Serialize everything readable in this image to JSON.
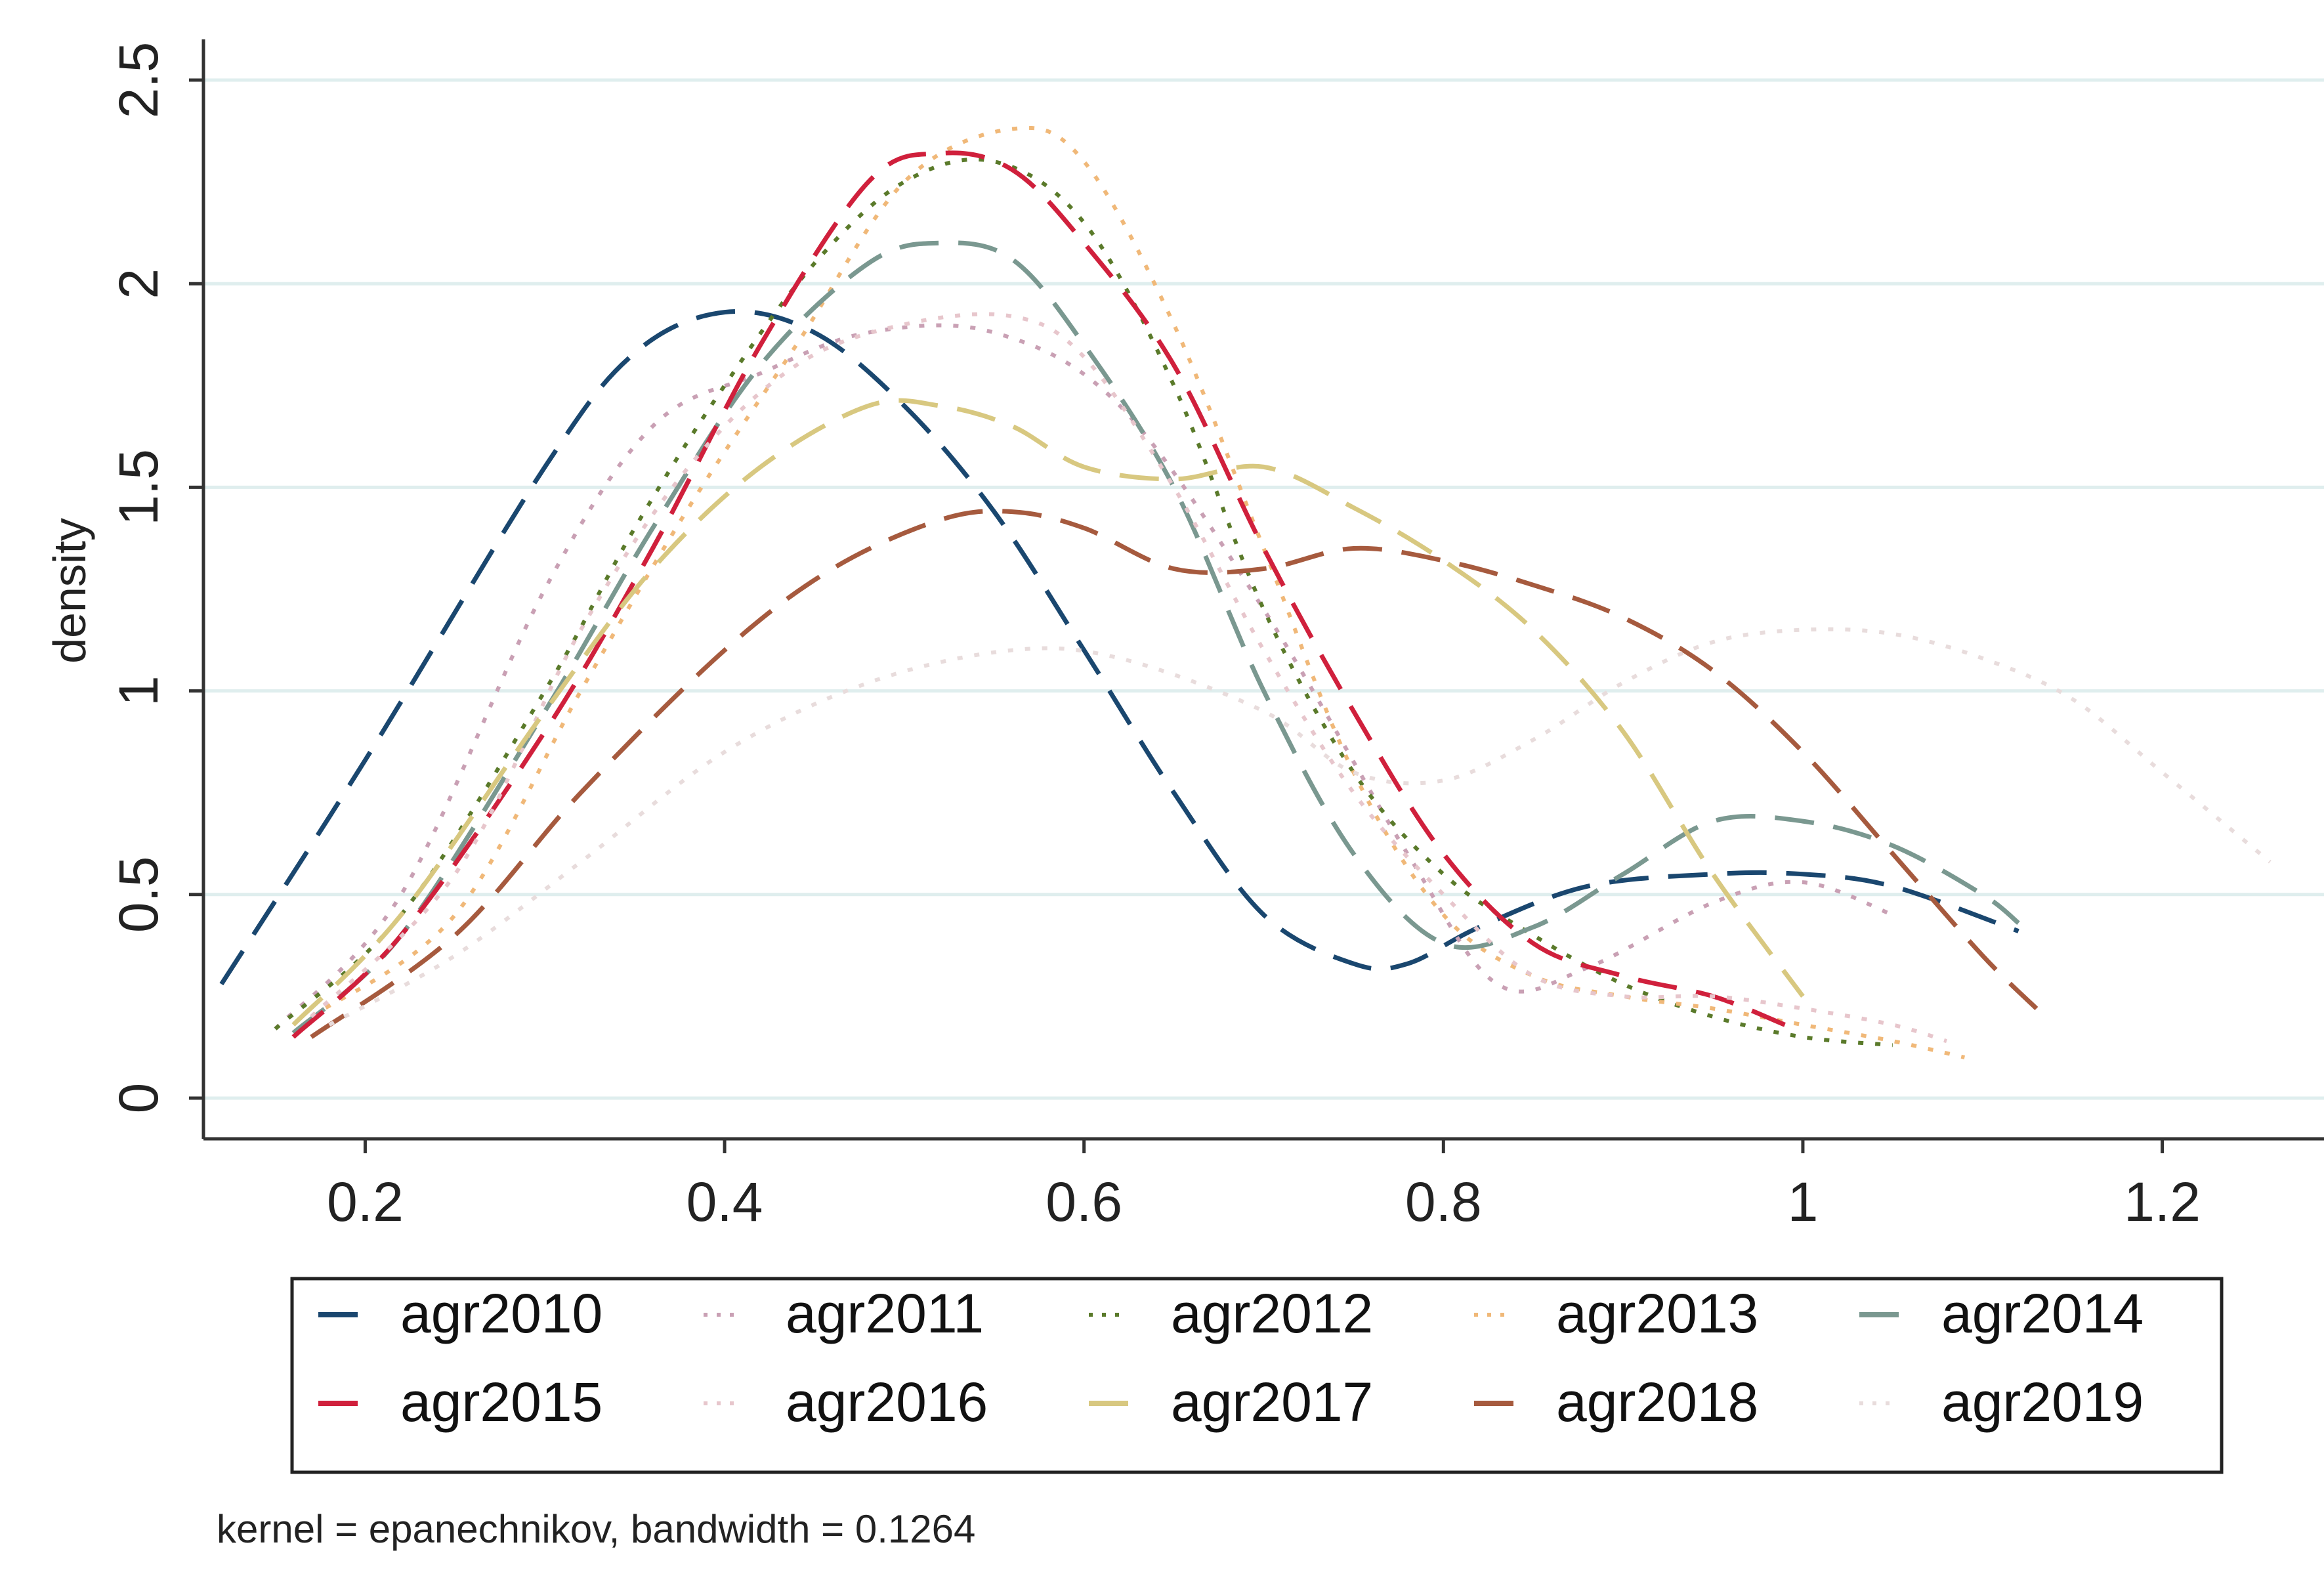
{
  "chart_data": {
    "type": "line",
    "title": "",
    "xlabel": "",
    "ylabel": "density",
    "xlim": [
      0.11,
      1.29
    ],
    "ylim": [
      -0.1,
      2.6
    ],
    "xticks": [
      0.2,
      0.4,
      0.6,
      0.8,
      1,
      1.2
    ],
    "xtick_labels": [
      "0.2",
      "0.4",
      "0.6",
      "0.8",
      "1",
      "1.2"
    ],
    "yticks": [
      0,
      0.5,
      1,
      1.5,
      2,
      2.5
    ],
    "ytick_labels": [
      "0",
      "0.5",
      "1",
      "1.5",
      "2",
      "2.5"
    ],
    "grid": true,
    "note": "kernel = epanechnikov, bandwidth = 0.1264",
    "legend_position": "bottom",
    "series": [
      {
        "name": "agr2010",
        "color": "#1a476f",
        "dash": "long",
        "x": [
          0.12,
          0.2,
          0.3,
          0.35,
          0.4,
          0.45,
          0.5,
          0.55,
          0.6,
          0.65,
          0.7,
          0.75,
          0.78,
          0.82,
          0.88,
          0.95,
          1.0,
          1.05,
          1.12
        ],
        "y": [
          0.28,
          0.83,
          1.55,
          1.83,
          1.93,
          1.88,
          1.7,
          1.44,
          1.1,
          0.75,
          0.45,
          0.33,
          0.33,
          0.42,
          0.52,
          0.55,
          0.55,
          0.52,
          0.41
        ]
      },
      {
        "name": "agr2011",
        "color": "#c9a0b4",
        "dash": "dot",
        "x": [
          0.15,
          0.22,
          0.3,
          0.36,
          0.42,
          0.48,
          0.55,
          0.62,
          0.7,
          0.78,
          0.83,
          0.88,
          0.95,
          1.0,
          1.05
        ],
        "y": [
          0.17,
          0.5,
          1.25,
          1.65,
          1.78,
          1.88,
          1.88,
          1.7,
          1.2,
          0.6,
          0.28,
          0.32,
          0.48,
          0.53,
          0.45
        ]
      },
      {
        "name": "agr2012",
        "color": "#5a7a2a",
        "dash": "dot",
        "x": [
          0.15,
          0.22,
          0.3,
          0.35,
          0.4,
          0.45,
          0.5,
          0.55,
          0.6,
          0.65,
          0.7,
          0.75,
          0.8,
          0.85,
          0.9,
          0.95,
          1.0,
          1.05
        ],
        "y": [
          0.17,
          0.45,
          1.0,
          1.4,
          1.75,
          2.05,
          2.25,
          2.3,
          2.15,
          1.75,
          1.2,
          0.8,
          0.55,
          0.4,
          0.28,
          0.2,
          0.15,
          0.13
        ]
      },
      {
        "name": "agr2013",
        "color": "#f0b878",
        "dash": "dot",
        "x": [
          0.17,
          0.25,
          0.32,
          0.38,
          0.44,
          0.5,
          0.56,
          0.6,
          0.65,
          0.7,
          0.75,
          0.8,
          0.85,
          0.9,
          0.95,
          1.0,
          1.05,
          1.09
        ],
        "y": [
          0.2,
          0.45,
          1.0,
          1.45,
          1.85,
          2.25,
          2.38,
          2.3,
          1.9,
          1.35,
          0.8,
          0.45,
          0.3,
          0.25,
          0.22,
          0.18,
          0.14,
          0.1
        ]
      },
      {
        "name": "agr2014",
        "color": "#7a9890",
        "dash": "long",
        "x": [
          0.16,
          0.22,
          0.3,
          0.36,
          0.42,
          0.48,
          0.52,
          0.56,
          0.6,
          0.65,
          0.7,
          0.75,
          0.8,
          0.85,
          0.9,
          0.95,
          1.0,
          1.05,
          1.1,
          1.12
        ],
        "y": [
          0.16,
          0.4,
          0.95,
          1.4,
          1.8,
          2.05,
          2.1,
          2.06,
          1.85,
          1.5,
          1.0,
          0.6,
          0.38,
          0.42,
          0.55,
          0.68,
          0.68,
          0.62,
          0.5,
          0.43
        ]
      },
      {
        "name": "agr2015",
        "color": "#d0203c",
        "dash": "long",
        "x": [
          0.16,
          0.22,
          0.3,
          0.36,
          0.42,
          0.48,
          0.52,
          0.56,
          0.6,
          0.65,
          0.7,
          0.75,
          0.8,
          0.85,
          0.9,
          0.95,
          0.99
        ],
        "y": [
          0.15,
          0.4,
          0.9,
          1.35,
          1.85,
          2.25,
          2.32,
          2.28,
          2.1,
          1.8,
          1.35,
          0.95,
          0.6,
          0.38,
          0.3,
          0.25,
          0.18
        ]
      },
      {
        "name": "agr2016",
        "color": "#e7c6cc",
        "dash": "dot",
        "x": [
          0.17,
          0.25,
          0.32,
          0.38,
          0.44,
          0.5,
          0.56,
          0.6,
          0.65,
          0.7,
          0.75,
          0.8,
          0.85,
          0.9,
          0.95,
          1.0,
          1.05,
          1.08
        ],
        "y": [
          0.2,
          0.55,
          1.15,
          1.55,
          1.8,
          1.9,
          1.92,
          1.82,
          1.5,
          1.1,
          0.75,
          0.5,
          0.3,
          0.25,
          0.25,
          0.22,
          0.18,
          0.14
        ]
      },
      {
        "name": "agr2017",
        "color": "#d8c880",
        "dash": "long",
        "x": [
          0.16,
          0.22,
          0.3,
          0.36,
          0.42,
          0.48,
          0.52,
          0.56,
          0.6,
          0.65,
          0.7,
          0.75,
          0.8,
          0.85,
          0.9,
          0.95,
          1.0
        ],
        "y": [
          0.18,
          0.45,
          0.95,
          1.3,
          1.55,
          1.7,
          1.7,
          1.65,
          1.55,
          1.52,
          1.55,
          1.45,
          1.32,
          1.15,
          0.9,
          0.55,
          0.25
        ]
      },
      {
        "name": "agr2018",
        "color": "#a65a3e",
        "dash": "long",
        "x": [
          0.17,
          0.25,
          0.32,
          0.4,
          0.46,
          0.52,
          0.56,
          0.6,
          0.65,
          0.7,
          0.75,
          0.8,
          0.85,
          0.9,
          0.95,
          1.0,
          1.05,
          1.1,
          1.13
        ],
        "y": [
          0.15,
          0.4,
          0.75,
          1.1,
          1.3,
          1.42,
          1.44,
          1.4,
          1.3,
          1.3,
          1.35,
          1.32,
          1.26,
          1.18,
          1.05,
          0.85,
          0.6,
          0.35,
          0.22
        ]
      },
      {
        "name": "agr2019",
        "color": "#e8dcdc",
        "dash": "dot",
        "x": [
          0.18,
          0.25,
          0.32,
          0.4,
          0.48,
          0.56,
          0.62,
          0.7,
          0.75,
          0.8,
          0.85,
          0.9,
          0.95,
          1.0,
          1.05,
          1.1,
          1.15,
          1.2,
          1.26
        ],
        "y": [
          0.18,
          0.35,
          0.58,
          0.85,
          1.02,
          1.1,
          1.08,
          0.95,
          0.8,
          0.78,
          0.88,
          1.02,
          1.12,
          1.15,
          1.14,
          1.08,
          0.98,
          0.8,
          0.58
        ]
      }
    ]
  }
}
